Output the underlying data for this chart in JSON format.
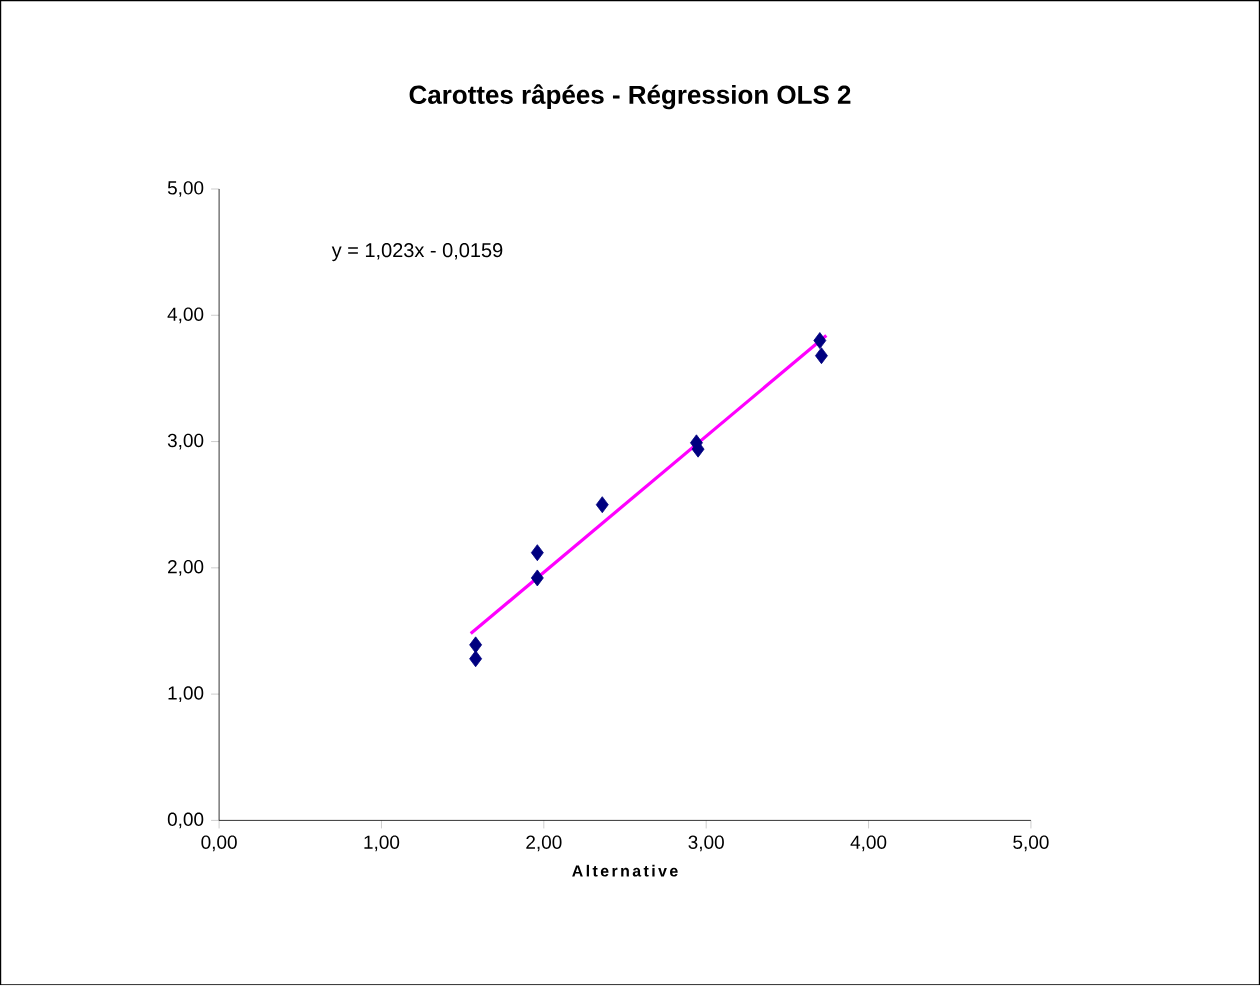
{
  "chart_data": {
    "type": "scatter",
    "title": "Carottes râpées - Régression OLS 2",
    "xlabel": "Alternative",
    "xlim": [
      0,
      5
    ],
    "ylim": [
      0,
      5
    ],
    "xticks": [
      {
        "value": 0,
        "label": "0,00"
      },
      {
        "value": 1,
        "label": "1,00"
      },
      {
        "value": 2,
        "label": "2,00"
      },
      {
        "value": 3,
        "label": "3,00"
      },
      {
        "value": 4,
        "label": "4,00"
      },
      {
        "value": 5,
        "label": "5,00"
      }
    ],
    "yticks": [
      {
        "value": 0,
        "label": "0,00"
      },
      {
        "value": 1,
        "label": "1,00"
      },
      {
        "value": 2,
        "label": "2,00"
      },
      {
        "value": 3,
        "label": "3,00"
      },
      {
        "value": 4,
        "label": "4,00"
      },
      {
        "value": 5,
        "label": "5,00"
      }
    ],
    "marker": "diamond",
    "grid": false,
    "annotations": [
      "y = 1,023x - 0,0159"
    ],
    "series": [
      {
        "color": "#000080",
        "x": [
          1.58,
          1.58,
          1.96,
          1.96,
          2.36,
          2.94,
          2.95,
          3.7,
          3.71
        ],
        "values": [
          1.39,
          1.28,
          2.12,
          1.92,
          2.5,
          2.99,
          2.94,
          3.8,
          3.68
        ]
      },
      {
        "type": "line",
        "marker": "none",
        "color": "#ff00ff",
        "x": [
          1.55,
          3.74
        ],
        "values": [
          1.48,
          3.84
        ]
      }
    ]
  }
}
